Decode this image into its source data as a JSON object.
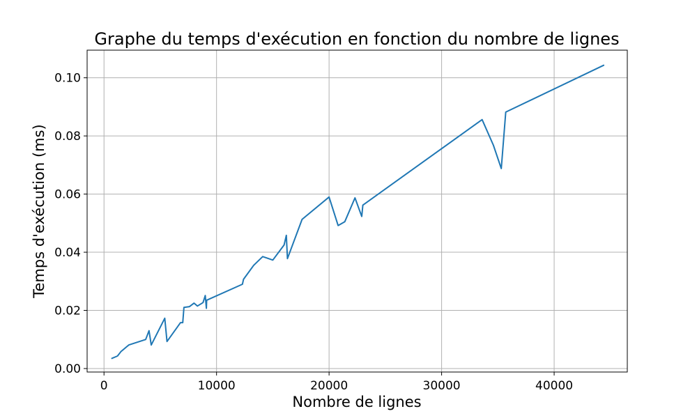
{
  "chart_data": {
    "type": "line",
    "title": "Graphe du temps d'exécution en fonction du nombre de lignes",
    "xlabel": "Nombre de lignes",
    "ylabel": "Temps d'exécution (ms)",
    "xlim": [
      -1500,
      46500
    ],
    "ylim": [
      -0.0012,
      0.1095
    ],
    "xticks": [
      0,
      10000,
      20000,
      30000,
      40000
    ],
    "yticks": [
      0.0,
      0.02,
      0.04,
      0.06,
      0.08,
      0.1
    ],
    "xtick_labels": [
      "0",
      "10000",
      "20000",
      "30000",
      "40000"
    ],
    "ytick_labels": [
      "0.00",
      "0.02",
      "0.04",
      "0.06",
      "0.08",
      "0.10"
    ],
    "grid": true,
    "line_color": "#1f77b4",
    "series": [
      {
        "x": [
          700,
          1200,
          1500,
          2200,
          3700,
          4000,
          4200,
          5400,
          5600,
          6800,
          7000,
          7100,
          7600,
          8000,
          8300,
          8800,
          9000,
          9100,
          9120,
          12300,
          12400,
          13300,
          14100,
          15000,
          16000,
          16200,
          16300,
          17600,
          20000,
          20800,
          21400,
          22300,
          22900,
          23000,
          33600,
          34600,
          35300,
          35700,
          44400
        ],
        "y": [
          0.0035,
          0.0043,
          0.0058,
          0.0081,
          0.01,
          0.013,
          0.0081,
          0.0173,
          0.0093,
          0.0158,
          0.0158,
          0.021,
          0.0213,
          0.0225,
          0.0215,
          0.0227,
          0.0251,
          0.0207,
          0.0235,
          0.029,
          0.0307,
          0.0355,
          0.0385,
          0.0373,
          0.0425,
          0.0458,
          0.0378,
          0.0513,
          0.059,
          0.0492,
          0.0505,
          0.0587,
          0.0523,
          0.0562,
          0.0856,
          0.0768,
          0.0688,
          0.0882,
          0.1043
        ]
      }
    ]
  }
}
